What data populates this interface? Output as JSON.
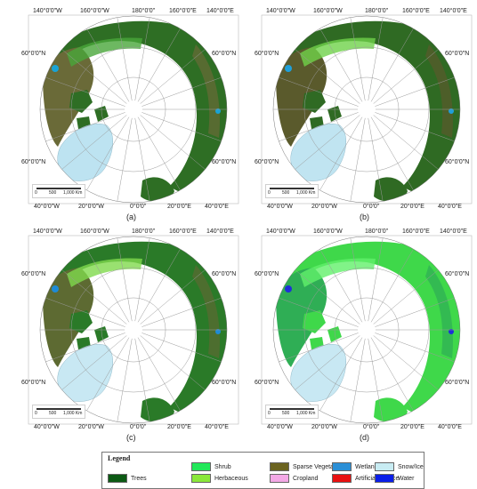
{
  "panels": [
    {
      "caption": "(a)",
      "colors": {
        "land": "#2e6e24",
        "mix": "#6a6a38",
        "shrub": "#49a63a",
        "ice": "#bde3f1",
        "accent": "#19a3d6"
      },
      "labels": {
        "l140w": "140°0'0\"W",
        "l160w": "160°0'0\"W",
        "l180": "180°0'0\"",
        "l160e": "160°0'0\"E",
        "l140e": "140°0'0\"E",
        "l60nl1": "60°0'0\"N",
        "l60nr1": "60°0'0\"N",
        "l60nl2": "60°0'0\"N",
        "l60nr2": "60°0'0\"N",
        "l40w": "40°0'0\"W",
        "l20w": "20°0'0\"W",
        "l0": "0°0'0\"",
        "l20e": "20°0'0\"E",
        "l40e": "40°0'0\"E"
      },
      "scale": {
        "t0": "0",
        "t1": "500",
        "t2": "1,000 Km"
      }
    },
    {
      "caption": "(b)",
      "colors": {
        "land": "#2f6a23",
        "mix": "#5a5a2c",
        "shrub": "#6fd24a",
        "ice": "#c0e4f1",
        "accent": "#1f9fd9"
      },
      "labels": {
        "l140w": "140°0'0\"W",
        "l160w": "160°0'0\"W",
        "l180": "180°0'0\"",
        "l160e": "160°0'0\"E",
        "l140e": "140°0'0\"E",
        "l60nl1": "60°0'0\"N",
        "l60nr1": "60°0'0\"N",
        "l60nl2": "60°0'0\"N",
        "l60nr2": "60°0'0\"N",
        "l40w": "40°0'0\"W",
        "l20w": "20°0'0\"W",
        "l0": "0°0'0\"",
        "l20e": "20°0'0\"E",
        "l40e": "40°0'0\"E"
      },
      "scale": {
        "t0": "0",
        "t1": "500",
        "t2": "1,000 Km"
      }
    },
    {
      "caption": "(c)",
      "colors": {
        "land": "#2a7a28",
        "mix": "#5d6a32",
        "shrub": "#7fd94c",
        "ice": "#c8e8f3",
        "accent": "#1e8bd6"
      },
      "labels": {
        "l140w": "140°0'0\"W",
        "l160w": "160°0'0\"W",
        "l180": "180°0'0\"",
        "l160e": "160°0'0\"E",
        "l140e": "140°0'0\"E",
        "l60nl1": "60°0'0\"N",
        "l60nr1": "60°0'0\"N",
        "l60nl2": "60°0'0\"N",
        "l60nr2": "60°0'0\"N",
        "l40w": "40°0'0\"W",
        "l20w": "20°0'0\"W",
        "l0": "0°0'0\"",
        "l20e": "20°0'0\"E",
        "l40e": "40°0'0\"E"
      },
      "scale": {
        "t0": "0",
        "t1": "500",
        "t2": "1,000 Km"
      }
    },
    {
      "caption": "(d)",
      "colors": {
        "land": "#3fd84a",
        "mix": "#2fae55",
        "shrub": "#62f06a",
        "ice": "#c8e8f3",
        "accent": "#1f2fd8"
      },
      "labels": {
        "l140w": "140°0'0\"W",
        "l160w": "160°0'0\"W",
        "l180": "180°0'0\"",
        "l160e": "160°0'0\"E",
        "l140e": "140°0'0\"E",
        "l60nl1": "60°0'0\"N",
        "l60nr1": "60°0'0\"N",
        "l60nl2": "60°0'0\"N",
        "l60nr2": "60°0'0\"N",
        "l40w": "40°0'0\"W",
        "l20w": "20°0'0\"W",
        "l0": "0°0'0\"",
        "l20e": "20°0'0\"E",
        "l40e": "40°0'0\"E"
      },
      "scale": {
        "t0": "0",
        "t1": "500",
        "t2": "1,000 Km"
      }
    }
  ],
  "legend": {
    "title": "Legend",
    "items": [
      {
        "label": "Trees",
        "color": "#0c5a14"
      },
      {
        "label": "Shrub",
        "color": "#22e85a"
      },
      {
        "label": "Herbaceous",
        "color": "#8ae83a"
      },
      {
        "label": "Sparse Vegetation",
        "color": "#6b6320"
      },
      {
        "label": "Cropland",
        "color": "#f3a8e6"
      },
      {
        "label": "Wetland",
        "color": "#2b8fd6"
      },
      {
        "label": "Artificial surface",
        "color": "#e81010"
      },
      {
        "label": "Snow/Ice",
        "color": "#c8ecf3"
      },
      {
        "label": "Water",
        "color": "#0a1ee8"
      }
    ]
  }
}
